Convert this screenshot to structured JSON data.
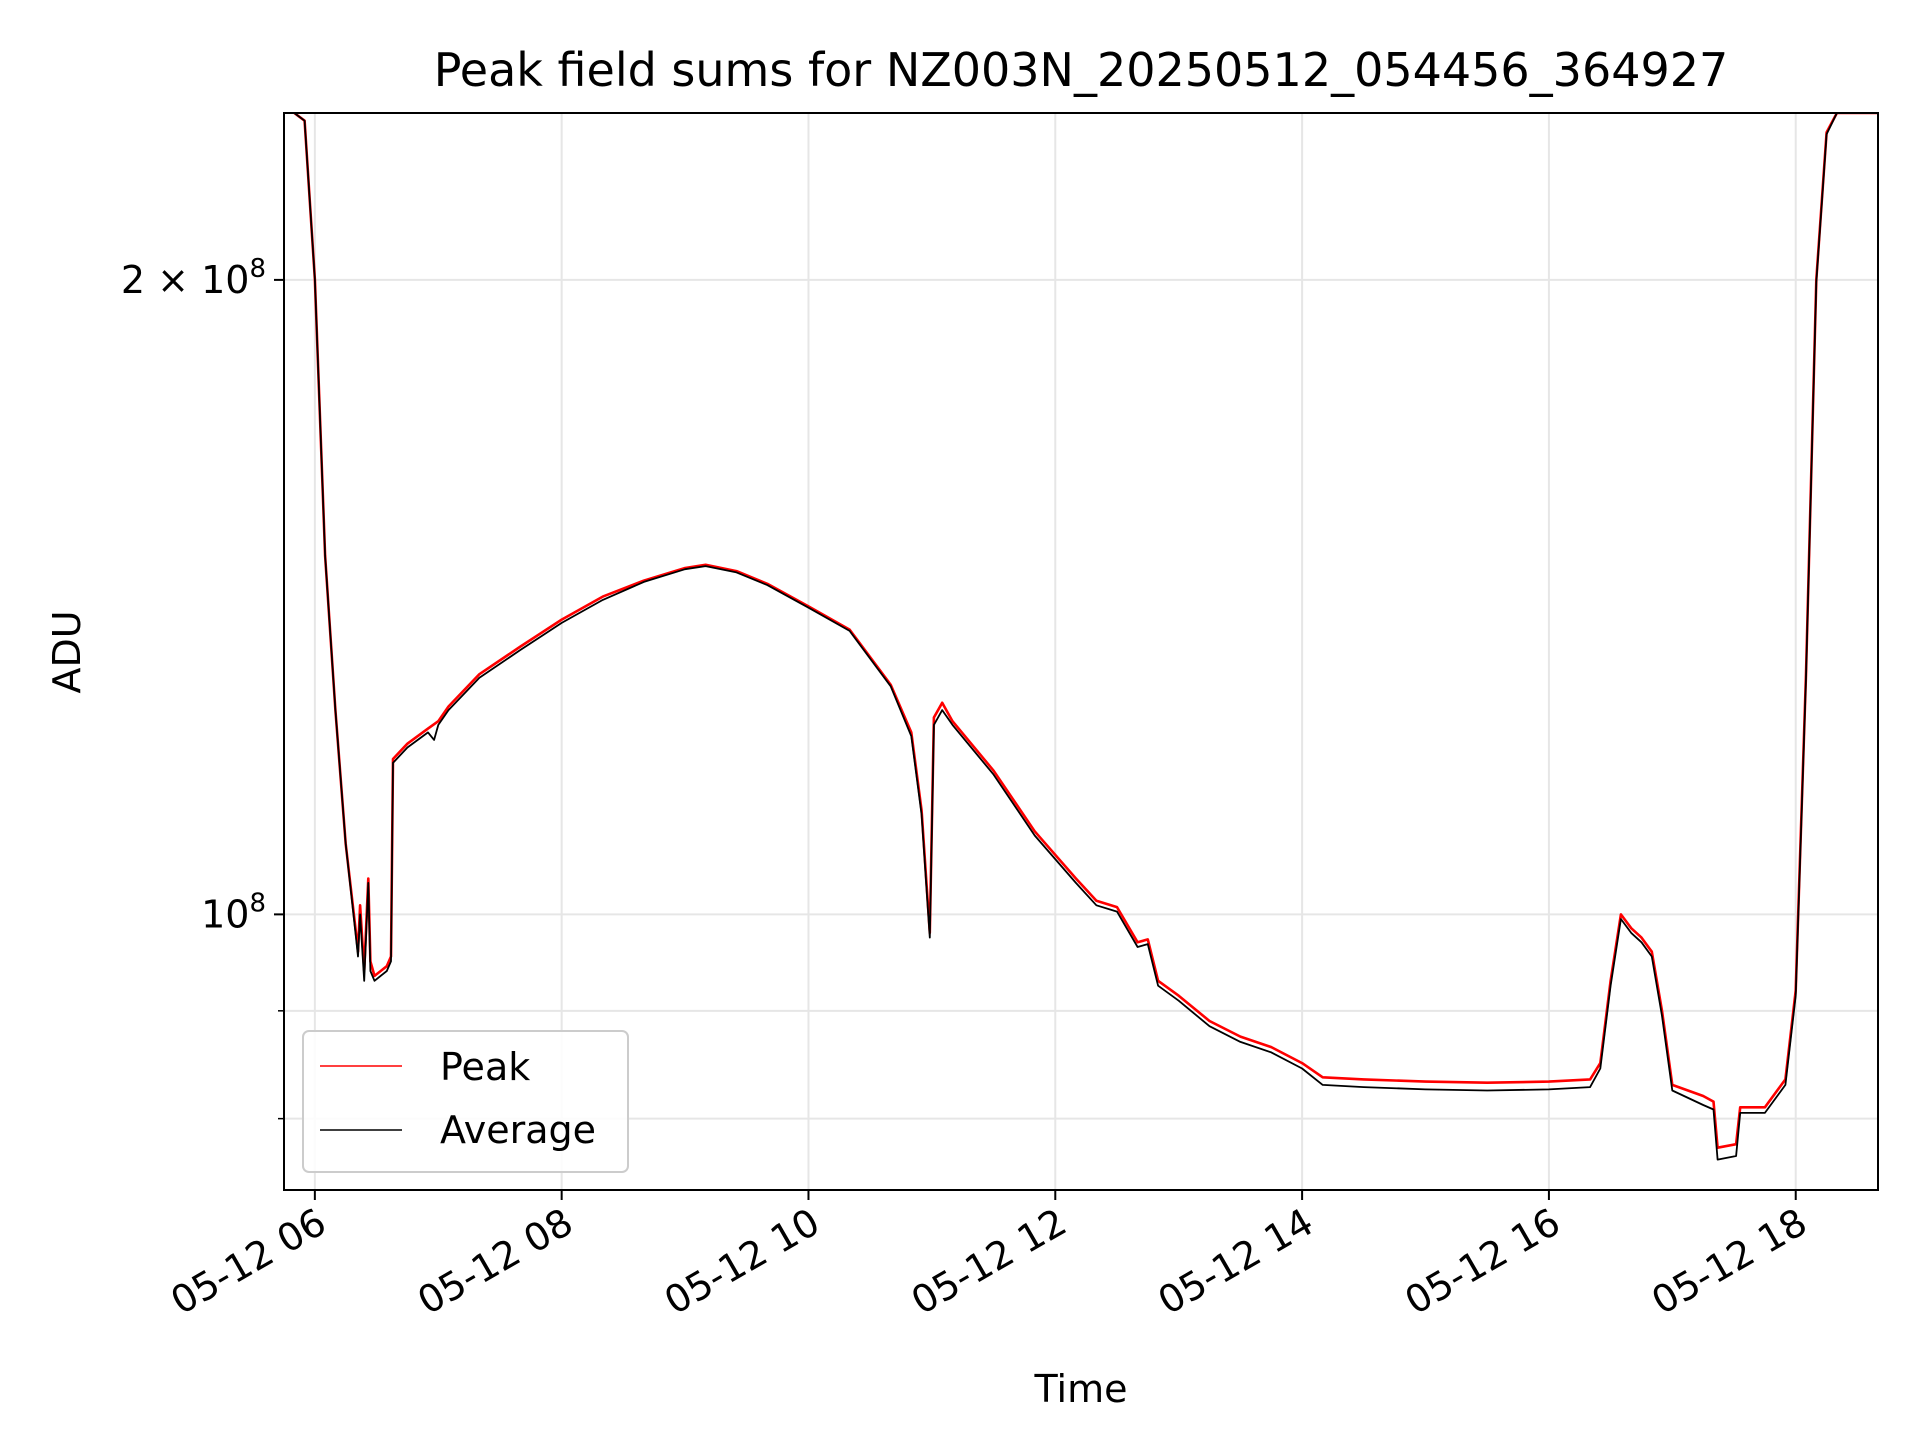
{
  "chart_data": {
    "type": "line",
    "title": "Peak field sums for NZ003N_20250512_054456_364927",
    "xlabel": "Time",
    "ylabel": "ADU",
    "y_scale": "log",
    "grid": true,
    "legend_position": "lower-left",
    "x_range": [
      "05-12 05:45",
      "05-12 18:40"
    ],
    "ylim": [
      74000000,
      240000000
    ],
    "x_tick_labels": [
      "05-12 06",
      "05-12 08",
      "05-12 10",
      "05-12 12",
      "05-12 14",
      "05-12 16",
      "05-12 18"
    ],
    "x_tick_values": [
      "05-12 06:00",
      "05-12 08:00",
      "05-12 10:00",
      "05-12 12:00",
      "05-12 14:00",
      "05-12 16:00",
      "05-12 18:00"
    ],
    "y_major_ticks": [
      {
        "value": 100000000,
        "label_base": "10",
        "label_exp": "8",
        "label_prefix": ""
      },
      {
        "value": 200000000,
        "label_base": "10",
        "label_exp": "8",
        "label_prefix": "2 × "
      }
    ],
    "y_minor_ticks": [
      80000000,
      90000000
    ],
    "series": [
      {
        "name": "Peak",
        "color": "#ff0000",
        "points": [
          [
            "05-12 05:50",
            240000000
          ],
          [
            "05-12 05:55",
            238000000
          ],
          [
            "05-12 06:00",
            200000000
          ],
          [
            "05-12 06:05",
            148000000
          ],
          [
            "05-12 06:10",
            125000000
          ],
          [
            "05-12 06:15",
            108000000
          ],
          [
            "05-12 06:20",
            98000000
          ],
          [
            "05-12 06:21",
            96000000
          ],
          [
            "05-12 06:22",
            101000000
          ],
          [
            "05-12 06:24",
            94000000
          ],
          [
            "05-12 06:26",
            104000000
          ],
          [
            "05-12 06:27",
            95000000
          ],
          [
            "05-12 06:29",
            93500000
          ],
          [
            "05-12 06:35",
            94500000
          ],
          [
            "05-12 06:37",
            95500000
          ],
          [
            "05-12 06:38",
            118500000
          ],
          [
            "05-12 06:45",
            120500000
          ],
          [
            "05-12 06:55",
            122500000
          ],
          [
            "05-12 07:00",
            123500000
          ],
          [
            "05-12 07:05",
            125500000
          ],
          [
            "05-12 07:20",
            130000000
          ],
          [
            "05-12 07:40",
            134000000
          ],
          [
            "05-12 08:00",
            138000000
          ],
          [
            "05-12 08:20",
            141500000
          ],
          [
            "05-12 08:40",
            144000000
          ],
          [
            "05-12 09:00",
            146000000
          ],
          [
            "05-12 09:10",
            146500000
          ],
          [
            "05-12 09:25",
            145500000
          ],
          [
            "05-12 09:40",
            143500000
          ],
          [
            "05-12 10:00",
            140000000
          ],
          [
            "05-12 10:20",
            136500000
          ],
          [
            "05-12 10:40",
            128500000
          ],
          [
            "05-12 10:50",
            122000000
          ],
          [
            "05-12 10:55",
            112000000
          ],
          [
            "05-12 10:59",
            98000000
          ],
          [
            "05-12 11:01",
            124000000
          ],
          [
            "05-12 11:05",
            126000000
          ],
          [
            "05-12 11:10",
            123500000
          ],
          [
            "05-12 11:30",
            117000000
          ],
          [
            "05-12 11:50",
            109500000
          ],
          [
            "05-12 12:10",
            104000000
          ],
          [
            "05-12 12:20",
            101500000
          ],
          [
            "05-12 12:30",
            100800000
          ],
          [
            "05-12 12:40",
            97000000
          ],
          [
            "05-12 12:45",
            97300000
          ],
          [
            "05-12 12:50",
            93000000
          ],
          [
            "05-12 13:00",
            91500000
          ],
          [
            "05-12 13:15",
            89000000
          ],
          [
            "05-12 13:30",
            87500000
          ],
          [
            "05-12 13:45",
            86500000
          ],
          [
            "05-12 14:00",
            85000000
          ],
          [
            "05-12 14:10",
            83700000
          ],
          [
            "05-12 14:30",
            83500000
          ],
          [
            "05-12 15:00",
            83300000
          ],
          [
            "05-12 15:30",
            83200000
          ],
          [
            "05-12 16:00",
            83300000
          ],
          [
            "05-12 16:20",
            83500000
          ],
          [
            "05-12 16:25",
            85000000
          ],
          [
            "05-12 16:30",
            93000000
          ],
          [
            "05-12 16:35",
            100000000
          ],
          [
            "05-12 16:40",
            98500000
          ],
          [
            "05-12 16:45",
            97500000
          ],
          [
            "05-12 16:50",
            96000000
          ],
          [
            "05-12 16:55",
            90000000
          ],
          [
            "05-12 17:00",
            83000000
          ],
          [
            "05-12 17:15",
            82000000
          ],
          [
            "05-12 17:20",
            81500000
          ],
          [
            "05-12 17:22",
            77500000
          ],
          [
            "05-12 17:31",
            77800000
          ],
          [
            "05-12 17:33",
            81000000
          ],
          [
            "05-12 17:45",
            81000000
          ],
          [
            "05-12 17:55",
            83500000
          ],
          [
            "05-12 18:00",
            92000000
          ],
          [
            "05-12 18:05",
            130000000
          ],
          [
            "05-12 18:10",
            200000000
          ],
          [
            "05-12 18:15",
            235000000
          ],
          [
            "05-12 18:20",
            240000000
          ],
          [
            "05-12 18:40",
            240000000
          ]
        ]
      },
      {
        "name": "Average",
        "color": "#000000",
        "points": [
          [
            "05-12 05:50",
            240000000
          ],
          [
            "05-12 05:55",
            238000000
          ],
          [
            "05-12 06:00",
            200000000
          ],
          [
            "05-12 06:05",
            148000000
          ],
          [
            "05-12 06:10",
            125000000
          ],
          [
            "05-12 06:15",
            108000000
          ],
          [
            "05-12 06:20",
            97500000
          ],
          [
            "05-12 06:21",
            95500000
          ],
          [
            "05-12 06:22",
            100000000
          ],
          [
            "05-12 06:24",
            93000000
          ],
          [
            "05-12 06:26",
            103500000
          ],
          [
            "05-12 06:27",
            94000000
          ],
          [
            "05-12 06:29",
            93000000
          ],
          [
            "05-12 06:35",
            94000000
          ],
          [
            "05-12 06:37",
            95000000
          ],
          [
            "05-12 06:38",
            118000000
          ],
          [
            "05-12 06:45",
            120000000
          ],
          [
            "05-12 06:55",
            122000000
          ],
          [
            "05-12 06:58",
            121000000
          ],
          [
            "05-12 07:00",
            123000000
          ],
          [
            "05-12 07:05",
            125000000
          ],
          [
            "05-12 07:20",
            129500000
          ],
          [
            "05-12 07:40",
            133500000
          ],
          [
            "05-12 08:00",
            137500000
          ],
          [
            "05-12 08:20",
            141000000
          ],
          [
            "05-12 08:40",
            143800000
          ],
          [
            "05-12 09:00",
            145800000
          ],
          [
            "05-12 09:10",
            146300000
          ],
          [
            "05-12 09:25",
            145300000
          ],
          [
            "05-12 09:40",
            143300000
          ],
          [
            "05-12 10:00",
            139800000
          ],
          [
            "05-12 10:20",
            136300000
          ],
          [
            "05-12 10:40",
            128300000
          ],
          [
            "05-12 10:50",
            121500000
          ],
          [
            "05-12 10:55",
            111500000
          ],
          [
            "05-12 10:59",
            97500000
          ],
          [
            "05-12 11:01",
            123000000
          ],
          [
            "05-12 11:05",
            125000000
          ],
          [
            "05-12 11:10",
            123000000
          ],
          [
            "05-12 11:30",
            116500000
          ],
          [
            "05-12 11:50",
            109000000
          ],
          [
            "05-12 12:10",
            103500000
          ],
          [
            "05-12 12:20",
            101000000
          ],
          [
            "05-12 12:30",
            100300000
          ],
          [
            "05-12 12:40",
            96500000
          ],
          [
            "05-12 12:45",
            96800000
          ],
          [
            "05-12 12:50",
            92500000
          ],
          [
            "05-12 13:00",
            91000000
          ],
          [
            "05-12 13:15",
            88500000
          ],
          [
            "05-12 13:30",
            87000000
          ],
          [
            "05-12 13:45",
            86000000
          ],
          [
            "05-12 14:00",
            84500000
          ],
          [
            "05-12 14:10",
            83000000
          ],
          [
            "05-12 14:30",
            82800000
          ],
          [
            "05-12 15:00",
            82600000
          ],
          [
            "05-12 15:30",
            82500000
          ],
          [
            "05-12 16:00",
            82600000
          ],
          [
            "05-12 16:20",
            82800000
          ],
          [
            "05-12 16:25",
            84500000
          ],
          [
            "05-12 16:30",
            92500000
          ],
          [
            "05-12 16:35",
            99500000
          ],
          [
            "05-12 16:40",
            98000000
          ],
          [
            "05-12 16:45",
            97000000
          ],
          [
            "05-12 16:50",
            95500000
          ],
          [
            "05-12 16:55",
            89500000
          ],
          [
            "05-12 17:00",
            82500000
          ],
          [
            "05-12 17:15",
            81200000
          ],
          [
            "05-12 17:20",
            80800000
          ],
          [
            "05-12 17:22",
            76500000
          ],
          [
            "05-12 17:31",
            76800000
          ],
          [
            "05-12 17:33",
            80500000
          ],
          [
            "05-12 17:45",
            80500000
          ],
          [
            "05-12 17:55",
            83000000
          ],
          [
            "05-12 18:00",
            91500000
          ],
          [
            "05-12 18:05",
            129500000
          ],
          [
            "05-12 18:10",
            199500000
          ],
          [
            "05-12 18:15",
            234500000
          ],
          [
            "05-12 18:20",
            240000000
          ],
          [
            "05-12 18:40",
            240000000
          ]
        ]
      }
    ]
  }
}
